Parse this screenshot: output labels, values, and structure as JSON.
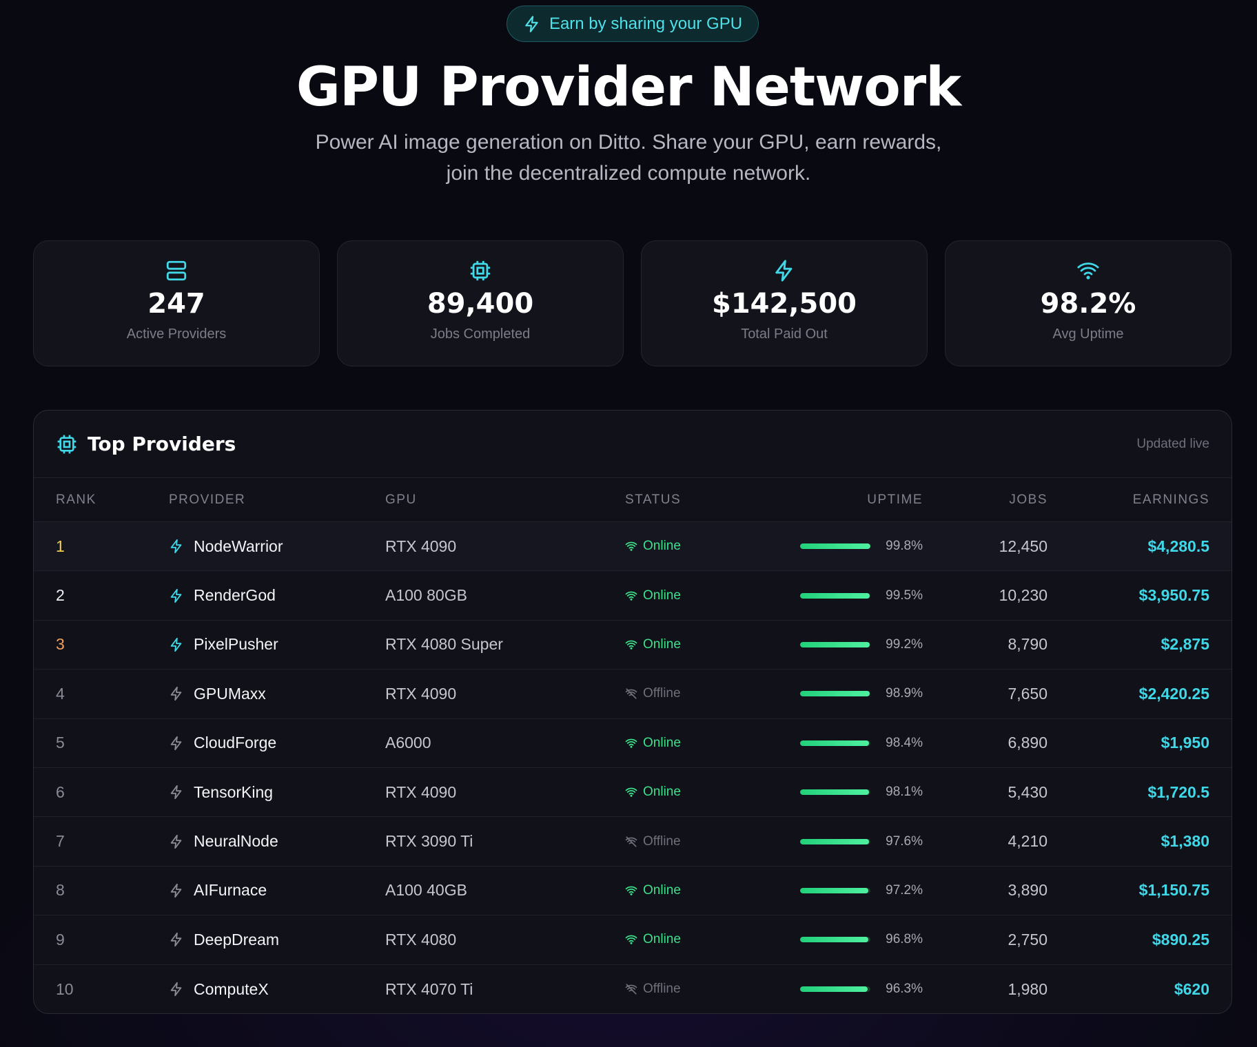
{
  "hero": {
    "pill_label": "Earn by sharing your GPU",
    "title": "GPU Provider Network",
    "subtitle_line1": "Power AI image generation on Ditto. Share your GPU, earn rewards,",
    "subtitle_line2": "join the decentralized compute network."
  },
  "stats": [
    {
      "icon": "server-icon",
      "value": "247",
      "label": "Active Providers"
    },
    {
      "icon": "cpu-icon",
      "value": "89,400",
      "label": "Jobs Completed"
    },
    {
      "icon": "bolt-icon",
      "value": "$142,500",
      "label": "Total Paid Out"
    },
    {
      "icon": "wifi-icon",
      "value": "98.2%",
      "label": "Avg Uptime"
    }
  ],
  "table": {
    "title": "Top Providers",
    "updated": "Updated live",
    "columns": {
      "rank": "RANK",
      "provider": "PROVIDER",
      "gpu": "GPU",
      "status": "STATUS",
      "uptime": "UPTIME",
      "jobs": "JOBS",
      "earnings": "EARNINGS"
    },
    "rows": [
      {
        "rank": "1",
        "provider": "NodeWarrior",
        "gpu": "RTX 4090",
        "status": "Online",
        "uptime": "99.8%",
        "uptime_value": 99.8,
        "jobs": "12,450",
        "earnings": "$4,280.5"
      },
      {
        "rank": "2",
        "provider": "RenderGod",
        "gpu": "A100 80GB",
        "status": "Online",
        "uptime": "99.5%",
        "uptime_value": 99.5,
        "jobs": "10,230",
        "earnings": "$3,950.75"
      },
      {
        "rank": "3",
        "provider": "PixelPusher",
        "gpu": "RTX 4080 Super",
        "status": "Online",
        "uptime": "99.2%",
        "uptime_value": 99.2,
        "jobs": "8,790",
        "earnings": "$2,875"
      },
      {
        "rank": "4",
        "provider": "GPUMaxx",
        "gpu": "RTX 4090",
        "status": "Offline",
        "uptime": "98.9%",
        "uptime_value": 98.9,
        "jobs": "7,650",
        "earnings": "$2,420.25"
      },
      {
        "rank": "5",
        "provider": "CloudForge",
        "gpu": "A6000",
        "status": "Online",
        "uptime": "98.4%",
        "uptime_value": 98.4,
        "jobs": "6,890",
        "earnings": "$1,950"
      },
      {
        "rank": "6",
        "provider": "TensorKing",
        "gpu": "RTX 4090",
        "status": "Online",
        "uptime": "98.1%",
        "uptime_value": 98.1,
        "jobs": "5,430",
        "earnings": "$1,720.5"
      },
      {
        "rank": "7",
        "provider": "NeuralNode",
        "gpu": "RTX 3090 Ti",
        "status": "Offline",
        "uptime": "97.6%",
        "uptime_value": 97.6,
        "jobs": "4,210",
        "earnings": "$1,380"
      },
      {
        "rank": "8",
        "provider": "AIFurnace",
        "gpu": "A100 40GB",
        "status": "Online",
        "uptime": "97.2%",
        "uptime_value": 97.2,
        "jobs": "3,890",
        "earnings": "$1,150.75"
      },
      {
        "rank": "9",
        "provider": "DeepDream",
        "gpu": "RTX 4080",
        "status": "Online",
        "uptime": "96.8%",
        "uptime_value": 96.8,
        "jobs": "2,750",
        "earnings": "$890.25"
      },
      {
        "rank": "10",
        "provider": "ComputeX",
        "gpu": "RTX 4070 Ti",
        "status": "Offline",
        "uptime": "96.3%",
        "uptime_value": 96.3,
        "jobs": "1,980",
        "earnings": "$620"
      }
    ]
  },
  "colors": {
    "accent": "#40d8e8",
    "online": "#3ee08a",
    "offline": "#6f707a",
    "rank_gold": "#f2d24a",
    "rank_bronze": "#f0a05a"
  }
}
